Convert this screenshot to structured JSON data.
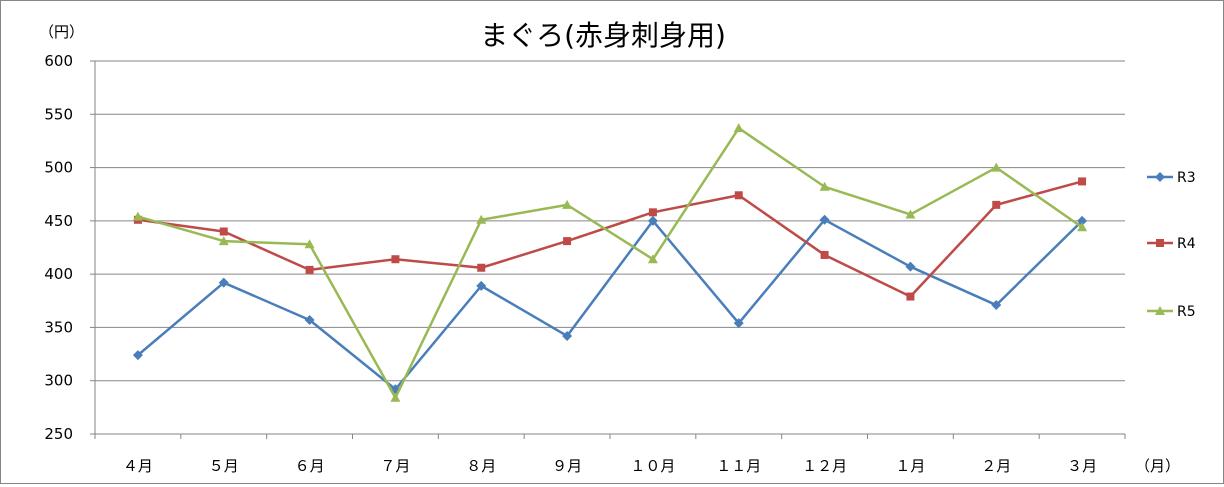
{
  "chart_data": {
    "type": "line",
    "title": "まぐろ(赤身刺身用)",
    "y_unit_label": "（円）",
    "x_unit_label": "（月）",
    "categories": [
      "４月",
      "５月",
      "６月",
      "７月",
      "８月",
      "９月",
      "１０月",
      "１１月",
      "１２月",
      "１月",
      "２月",
      "３月"
    ],
    "ylim": [
      250,
      600
    ],
    "yticks": [
      250,
      300,
      350,
      400,
      450,
      500,
      550,
      600
    ],
    "grid": true,
    "legend_position": "right",
    "series": [
      {
        "name": "R3",
        "color": "#4A7EBB",
        "marker": "diamond",
        "values": [
          324,
          392,
          357,
          292,
          389,
          342,
          450,
          354,
          451,
          407,
          371,
          450
        ]
      },
      {
        "name": "R4",
        "color": "#BE4B48",
        "marker": "square",
        "values": [
          451,
          440,
          404,
          414,
          406,
          431,
          458,
          474,
          418,
          379,
          465,
          487
        ]
      },
      {
        "name": "R5",
        "color": "#98B954",
        "marker": "triangle",
        "values": [
          454,
          431,
          428,
          284,
          451,
          465,
          414,
          537,
          482,
          456,
          500,
          444
        ]
      }
    ]
  }
}
